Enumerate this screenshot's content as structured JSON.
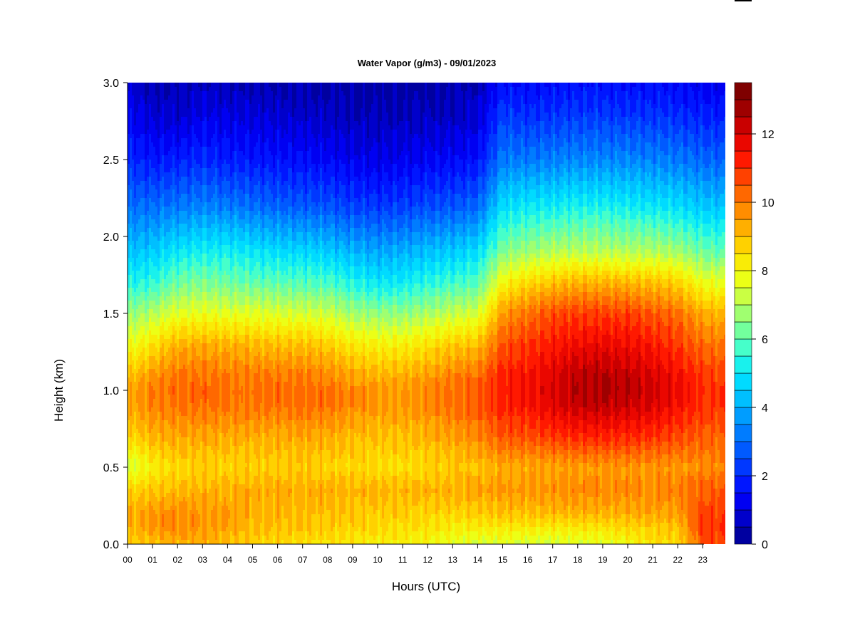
{
  "chart_data": {
    "type": "heatmap",
    "title": "Water Vapor (g/m3) - 09/01/2023",
    "xlabel": "Hours (UTC)",
    "ylabel": "Height (km)",
    "x_ticks": [
      "00",
      "01",
      "02",
      "03",
      "04",
      "05",
      "06",
      "07",
      "08",
      "09",
      "10",
      "11",
      "12",
      "13",
      "14",
      "15",
      "16",
      "17",
      "18",
      "19",
      "20",
      "21",
      "22",
      "23"
    ],
    "y_ticks": [
      "0.0",
      "0.5",
      "1.0",
      "1.5",
      "2.0",
      "2.5",
      "3.0"
    ],
    "xlim": [
      0,
      24
    ],
    "ylim": [
      0,
      3.0
    ],
    "colorbar": {
      "ticks": [
        "0",
        "2",
        "4",
        "6",
        "8",
        "10",
        "12"
      ],
      "range": [
        0,
        13.5
      ],
      "levels": 27,
      "colors": [
        "#00008B",
        "#0000C8",
        "#0000FF",
        "#0030FF",
        "#0060FF",
        "#0090FF",
        "#00C0FF",
        "#00E8FF",
        "#40FFD0",
        "#80FF90",
        "#C0FF50",
        "#F0FF10",
        "#FFE000",
        "#FFB000",
        "#FF8000",
        "#FF4800",
        "#FF1000",
        "#D80000",
        "#9B0000",
        "#700000"
      ]
    },
    "hours": [
      0,
      1,
      2,
      3,
      4,
      5,
      6,
      7,
      8,
      9,
      10,
      11,
      12,
      13,
      14,
      15,
      16,
      17,
      18,
      19,
      20,
      21,
      22,
      23,
      24
    ],
    "heights_km": [
      0.0,
      0.1,
      0.2,
      0.35,
      0.5,
      0.7,
      0.9,
      1.0,
      1.1,
      1.3,
      1.5,
      1.7,
      1.9,
      2.2,
      2.5,
      2.8,
      3.0
    ],
    "values_g_m3": [
      [
        8.8,
        9.0,
        9.2,
        8.7,
        7.2,
        8.6,
        9.3,
        9.3,
        8.9,
        7.7,
        6.5,
        5.3,
        4.3,
        3.0,
        2.0,
        1.2,
        1.0
      ],
      [
        9.0,
        9.6,
        9.6,
        8.9,
        8.2,
        9.2,
        9.9,
        10.0,
        9.6,
        8.4,
        7.0,
        5.5,
        4.5,
        3.0,
        1.7,
        0.8,
        0.5
      ],
      [
        9.2,
        9.8,
        9.8,
        9.1,
        8.6,
        9.4,
        10.1,
        10.2,
        10.1,
        9.2,
        7.6,
        6.2,
        5.0,
        3.2,
        1.8,
        0.7,
        0.5
      ],
      [
        9.2,
        9.6,
        9.6,
        9.2,
        8.7,
        9.4,
        10.2,
        10.3,
        10.1,
        9.3,
        7.7,
        6.4,
        5.2,
        3.3,
        2.0,
        1.1,
        0.6
      ],
      [
        9.0,
        9.4,
        9.5,
        9.2,
        8.7,
        9.3,
        10.1,
        10.1,
        10.0,
        9.2,
        7.6,
        6.2,
        5.2,
        3.2,
        1.8,
        1.0,
        0.5
      ],
      [
        8.7,
        9.1,
        9.2,
        9.3,
        8.7,
        9.3,
        10.1,
        10.2,
        10.0,
        9.1,
        7.6,
        6.1,
        5.0,
        3.0,
        1.7,
        0.9,
        0.5
      ],
      [
        8.6,
        9.0,
        9.2,
        9.3,
        8.8,
        9.3,
        10.1,
        10.2,
        10.0,
        9.0,
        7.5,
        6.0,
        4.8,
        2.8,
        1.6,
        0.8,
        0.4
      ],
      [
        8.5,
        8.9,
        9.1,
        9.3,
        8.8,
        9.4,
        10.2,
        10.2,
        10.0,
        9.0,
        7.4,
        5.9,
        4.7,
        2.7,
        1.5,
        0.7,
        0.4
      ],
      [
        8.4,
        8.8,
        9.0,
        9.3,
        8.7,
        9.3,
        10.1,
        10.1,
        9.8,
        8.8,
        7.3,
        5.8,
        4.5,
        2.6,
        1.4,
        0.6,
        0.4
      ],
      [
        8.3,
        8.7,
        8.9,
        9.2,
        8.6,
        9.1,
        9.8,
        9.8,
        9.4,
        8.3,
        6.8,
        5.3,
        4.1,
        2.3,
        1.2,
        0.5,
        0.3
      ],
      [
        8.2,
        8.6,
        8.8,
        9.2,
        8.5,
        9.0,
        9.6,
        9.6,
        9.2,
        8.1,
        6.6,
        5.0,
        3.9,
        2.2,
        1.1,
        0.5,
        0.3
      ],
      [
        8.1,
        8.5,
        8.8,
        9.2,
        8.5,
        9.0,
        9.6,
        9.6,
        9.2,
        8.1,
        6.6,
        5.1,
        4.0,
        2.3,
        1.2,
        0.5,
        0.3
      ],
      [
        8.0,
        8.4,
        8.7,
        9.2,
        8.6,
        9.2,
        9.8,
        9.8,
        9.5,
        8.4,
        6.9,
        5.4,
        4.3,
        2.5,
        1.3,
        0.6,
        0.3
      ],
      [
        7.6,
        8.2,
        8.7,
        9.3,
        8.8,
        9.5,
        10.2,
        10.2,
        9.9,
        8.8,
        7.2,
        5.7,
        4.5,
        2.6,
        1.4,
        0.6,
        0.4
      ],
      [
        7.5,
        8.2,
        8.8,
        9.4,
        9.0,
        9.8,
        10.5,
        10.5,
        10.1,
        9.0,
        7.4,
        5.9,
        4.8,
        2.9,
        1.6,
        0.8,
        0.5
      ],
      [
        7.5,
        8.3,
        9.0,
        9.6,
        9.3,
        10.5,
        11.2,
        11.3,
        11.2,
        10.5,
        9.6,
        8.0,
        6.4,
        4.8,
        3.2,
        2.3,
        1.5
      ],
      [
        7.4,
        8.2,
        9.0,
        9.6,
        9.3,
        10.6,
        11.4,
        11.5,
        11.4,
        10.9,
        10.1,
        8.6,
        6.8,
        5.0,
        3.2,
        2.0,
        1.4
      ],
      [
        7.4,
        8.2,
        9.1,
        9.7,
        9.4,
        10.9,
        11.9,
        12.0,
        11.9,
        11.3,
        10.6,
        9.0,
        7.0,
        5.1,
        3.3,
        2.1,
        1.5
      ],
      [
        7.5,
        8.3,
        9.2,
        9.8,
        9.5,
        11.1,
        12.3,
        12.5,
        12.4,
        11.6,
        10.8,
        9.2,
        7.1,
        5.2,
        3.4,
        2.2,
        1.6
      ],
      [
        7.6,
        8.4,
        9.2,
        9.8,
        9.6,
        11.2,
        12.4,
        12.6,
        12.5,
        11.7,
        10.8,
        9.2,
        7.1,
        5.2,
        3.4,
        2.2,
        1.6
      ],
      [
        7.9,
        8.6,
        9.3,
        9.8,
        9.6,
        11.1,
        12.2,
        12.4,
        12.3,
        11.6,
        10.8,
        9.1,
        7.0,
        5.1,
        3.4,
        2.1,
        1.5
      ],
      [
        8.4,
        8.8,
        9.4,
        9.8,
        9.6,
        11.0,
        12.0,
        12.1,
        12.0,
        11.3,
        10.5,
        9.0,
        7.0,
        5.0,
        3.3,
        2.1,
        1.5
      ],
      [
        8.6,
        8.9,
        9.5,
        9.9,
        9.6,
        10.7,
        11.5,
        11.6,
        11.5,
        10.9,
        10.2,
        8.7,
        6.8,
        4.8,
        3.2,
        2.0,
        1.4
      ],
      [
        10.6,
        10.8,
        10.7,
        10.4,
        9.8,
        10.4,
        11.0,
        11.1,
        10.9,
        10.2,
        9.3,
        7.8,
        6.2,
        4.4,
        2.9,
        1.8,
        1.2
      ],
      [
        10.8,
        11.0,
        10.9,
        10.5,
        9.8,
        10.3,
        10.9,
        10.9,
        10.7,
        10.0,
        9.1,
        7.6,
        6.0,
        4.3,
        2.8,
        1.7,
        1.1
      ]
    ]
  }
}
